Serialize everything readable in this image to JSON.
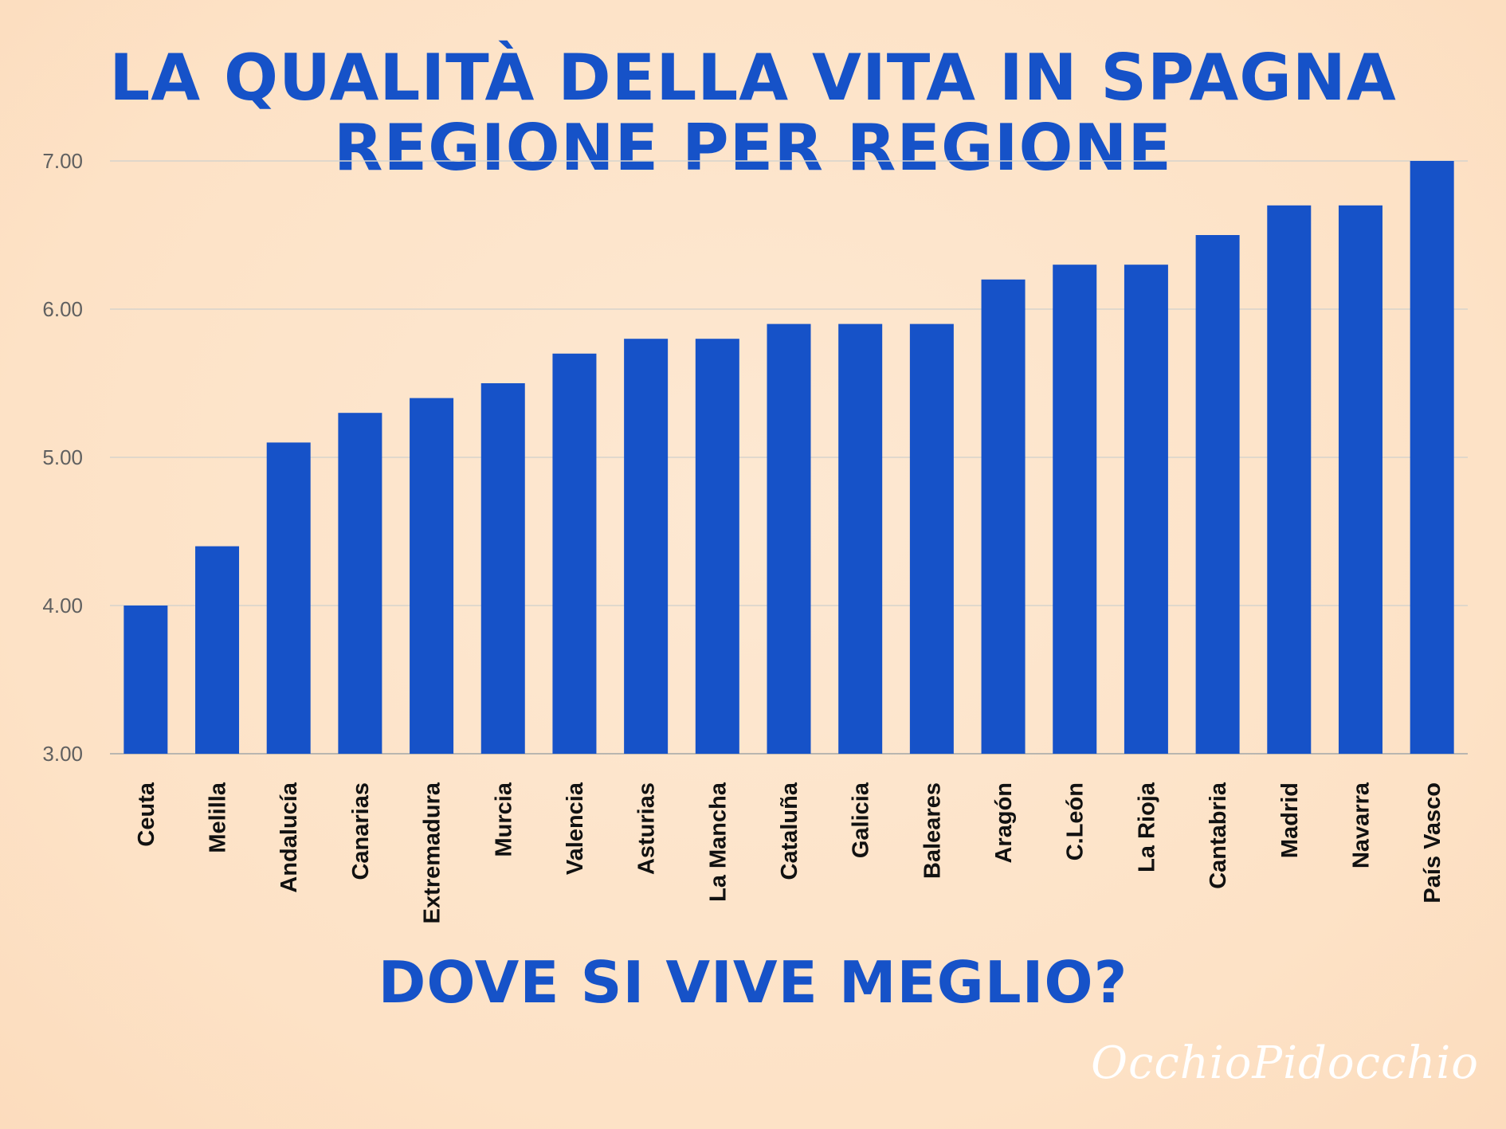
{
  "chart_data": {
    "type": "bar",
    "title_line1": "LA QUALITÀ DELLA VITA IN SPAGNA",
    "title_line2": "REGIONE PER REGIONE",
    "subtitle": "DOVE SI VIVE MEGLIO?",
    "xlabel": "",
    "ylabel": "",
    "ylim": [
      3.0,
      7.0
    ],
    "yticks": [
      "3.00",
      "4.00",
      "5.00",
      "6.00",
      "7.00"
    ],
    "grid": true,
    "bar_color": "#1652c8",
    "categories": [
      "Ceuta",
      "Melilla",
      "Andalucía",
      "Canarias",
      "Extremadura",
      "Murcia",
      "Valencia",
      "Asturias",
      "La Mancha",
      "Cataluña",
      "Galicia",
      "Baleares",
      "Aragón",
      "C.León",
      "La Rioja",
      "Cantabria",
      "Madrid",
      "Navarra",
      "País Vasco"
    ],
    "values": [
      4.0,
      4.4,
      5.1,
      5.3,
      5.4,
      5.5,
      5.7,
      5.8,
      5.8,
      5.9,
      5.9,
      5.9,
      6.2,
      6.3,
      6.3,
      6.5,
      6.7,
      6.7,
      7.0
    ]
  },
  "brand": "OcchioPidocchio",
  "colors": {
    "background": "#fde3c8",
    "accent": "#1652c8",
    "brand": "#ffffff"
  }
}
